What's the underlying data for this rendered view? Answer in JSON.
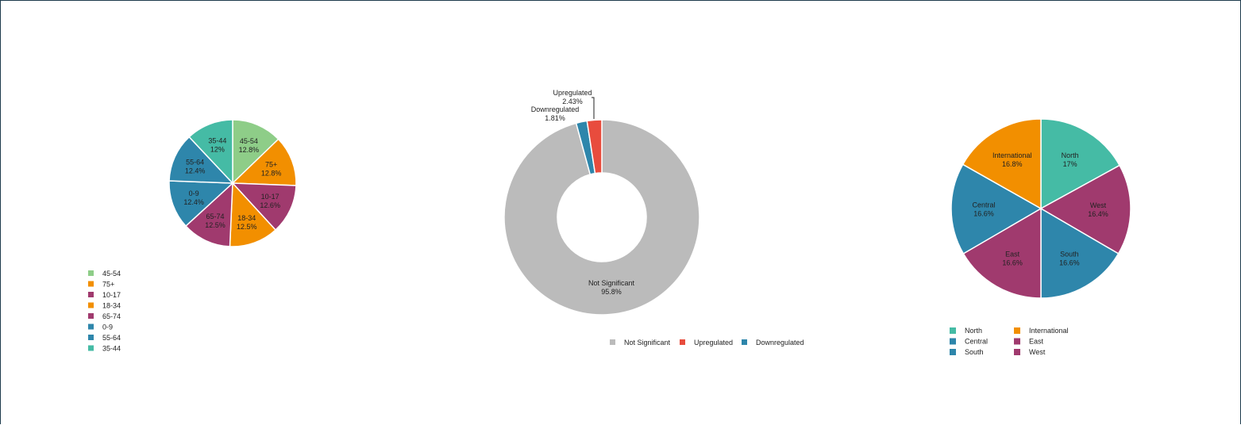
{
  "chart_data": [
    {
      "type": "pie",
      "legend_position": "bottom-left",
      "slices": [
        {
          "label": "45-54",
          "value": 12.8,
          "display": "12.8%",
          "color": "#8ecd88"
        },
        {
          "label": "75+",
          "value": 12.8,
          "display": "12.8%",
          "color": "#f28f00"
        },
        {
          "label": "10-17",
          "value": 12.6,
          "display": "12.6%",
          "color": "#a03a6e"
        },
        {
          "label": "18-34",
          "value": 12.5,
          "display": "12.5%",
          "color": "#f28f00"
        },
        {
          "label": "65-74",
          "value": 12.5,
          "display": "12.5%",
          "color": "#a03a6e"
        },
        {
          "label": "0-9",
          "value": 12.4,
          "display": "12.4%",
          "color": "#2e86ab"
        },
        {
          "label": "55-64",
          "value": 12.4,
          "display": "12.4%",
          "color": "#2e86ab"
        },
        {
          "label": "35-44",
          "value": 12.0,
          "display": "12%",
          "color": "#45bba5"
        }
      ]
    },
    {
      "type": "donut",
      "legend_position": "bottom",
      "slices": [
        {
          "label": "Not Significant",
          "value": 95.76,
          "display": "95.8%",
          "color": "#bbbbbb"
        },
        {
          "label": "Downregulated",
          "value": 1.81,
          "display": "1.81%",
          "color": "#2e86ab"
        },
        {
          "label": "Upregulated",
          "value": 2.43,
          "display": "2.43%",
          "color": "#e84c3d"
        }
      ],
      "legend": [
        "Not Significant",
        "Upregulated",
        "Downregulated"
      ]
    },
    {
      "type": "pie",
      "legend_position": "bottom",
      "slices": [
        {
          "label": "North",
          "value": 17.0,
          "display": "17%",
          "color": "#45bba5"
        },
        {
          "label": "West",
          "value": 16.4,
          "display": "16.4%",
          "color": "#a03a6e"
        },
        {
          "label": "South",
          "value": 16.6,
          "display": "16.6%",
          "color": "#2e86ab"
        },
        {
          "label": "East",
          "value": 16.6,
          "display": "16.6%",
          "color": "#a03a6e"
        },
        {
          "label": "Central",
          "value": 16.6,
          "display": "16.6%",
          "color": "#2e86ab"
        },
        {
          "label": "International",
          "value": 16.8,
          "display": "16.8%",
          "color": "#f28f00"
        }
      ],
      "legend": [
        "North",
        "Central",
        "South",
        "International",
        "East",
        "West"
      ]
    }
  ]
}
